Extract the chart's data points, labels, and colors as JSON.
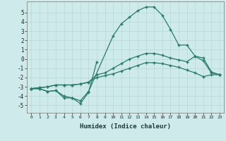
{
  "xlabel": "Humidex (Indice chaleur)",
  "bg_color": "#ceeaea",
  "grid_color": "#b8d8d8",
  "line_color": "#2a7a6a",
  "x_ticks": [
    0,
    1,
    2,
    3,
    4,
    5,
    6,
    7,
    8,
    9,
    10,
    11,
    12,
    13,
    14,
    15,
    16,
    17,
    18,
    19,
    20,
    21,
    22,
    23
  ],
  "y_ticks": [
    -5,
    -4,
    -3,
    -2,
    -1,
    0,
    1,
    2,
    3,
    4,
    5
  ],
  "ylim": [
    -5.8,
    6.2
  ],
  "xlim": [
    -0.5,
    23.5
  ],
  "series": [
    {
      "x": [
        0,
        1,
        2,
        3,
        4,
        5,
        6,
        7,
        8,
        9,
        10,
        11,
        12,
        13,
        14,
        15,
        16,
        17,
        18,
        19,
        20,
        21,
        22,
        23
      ],
      "y": [
        -3.2,
        -3.2,
        -3.5,
        -3.4,
        -4.2,
        -4.2,
        -4.8,
        -3.6,
        -0.3,
        null,
        null,
        null,
        null,
        null,
        null,
        null,
        null,
        null,
        null,
        null,
        null,
        null,
        null,
        null
      ]
    },
    {
      "x": [
        0,
        1,
        2,
        3,
        4,
        5,
        6,
        7,
        8,
        9,
        10,
        11,
        12,
        13,
        14,
        15,
        16,
        17,
        18,
        19,
        20,
        21,
        22,
        23
      ],
      "y": [
        -3.2,
        -3.2,
        -3.5,
        -3.4,
        -4.0,
        -4.2,
        -4.5,
        -3.5,
        null,
        null,
        2.5,
        3.8,
        4.5,
        5.2,
        5.6,
        5.6,
        4.7,
        3.2,
        1.5,
        1.5,
        0.3,
        -0.2,
        -1.5,
        -1.7
      ]
    },
    {
      "x": [
        0,
        1,
        2,
        3,
        4,
        5,
        6,
        7,
        8,
        9,
        10,
        11,
        12,
        13,
        14,
        15,
        16,
        17,
        18,
        19,
        20,
        21,
        22,
        23
      ],
      "y": [
        -3.2,
        -3.1,
        -3.0,
        -2.8,
        -2.8,
        -2.8,
        -2.7,
        -2.5,
        -1.7,
        -1.5,
        -1.0,
        -0.5,
        0.0,
        0.3,
        0.6,
        0.6,
        0.4,
        0.1,
        -0.1,
        -0.3,
        0.3,
        0.1,
        -1.4,
        -1.7
      ]
    },
    {
      "x": [
        0,
        1,
        2,
        3,
        4,
        5,
        6,
        7,
        8,
        9,
        10,
        11,
        12,
        13,
        14,
        15,
        16,
        17,
        18,
        19,
        20,
        21,
        22,
        23
      ],
      "y": [
        -3.2,
        -3.1,
        -3.0,
        -2.8,
        -2.8,
        -2.8,
        -2.7,
        -2.5,
        -2.0,
        -1.8,
        -1.6,
        -1.3,
        -1.0,
        -0.7,
        -0.4,
        -0.4,
        -0.5,
        -0.7,
        -0.9,
        -1.2,
        -1.5,
        -1.9,
        -1.7,
        -1.7
      ]
    }
  ]
}
